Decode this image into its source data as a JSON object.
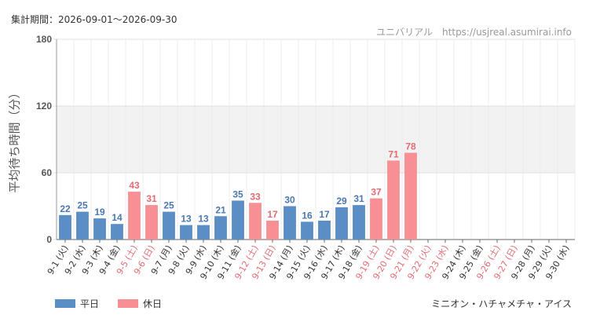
{
  "header": {
    "period": "集計期間：2026-09-01〜2026-09-30",
    "credit": "ユニバリアル　https://usjreal.asumirai.info"
  },
  "footer": {
    "ride_name": "ミニオン・ハチャメチャ・アイス"
  },
  "colors": {
    "weekday": "#5b8ec4",
    "holiday": "#f78f95",
    "weekday_label": "#4a78b0",
    "holiday_label": "#e36b73",
    "band": "#f2f2f2",
    "grid": "#e0e0e0"
  },
  "chart_data": {
    "type": "bar",
    "ylabel": "平均待ち時間（分）",
    "ylim": [
      0,
      180
    ],
    "yticks": [
      0,
      60,
      120,
      180
    ],
    "band_range": [
      60,
      120
    ],
    "grid": true,
    "legend_position": "bottom-left",
    "legend": [
      {
        "name": "平日",
        "key": "weekday"
      },
      {
        "name": "休日",
        "key": "holiday"
      }
    ],
    "categories": [
      "9-1 (火)",
      "9-2 (水)",
      "9-3 (木)",
      "9-4 (金)",
      "9-5 (土)",
      "9-6 (日)",
      "9-7 (月)",
      "9-8 (火)",
      "9-9 (水)",
      "9-10 (木)",
      "9-11 (金)",
      "9-12 (土)",
      "9-13 (日)",
      "9-14 (月)",
      "9-15 (火)",
      "9-16 (水)",
      "9-17 (木)",
      "9-18 (金)",
      "9-19 (土)",
      "9-20 (日)",
      "9-21 (月)",
      "9-22 (火)",
      "9-23 (水)",
      "9-24 (木)",
      "9-25 (金)",
      "9-26 (土)",
      "9-27 (日)",
      "9-28 (月)",
      "9-29 (火)",
      "9-30 (水)"
    ],
    "values": [
      22,
      25,
      19,
      14,
      43,
      31,
      25,
      13,
      13,
      21,
      35,
      33,
      17,
      30,
      16,
      17,
      29,
      31,
      37,
      71,
      78,
      null,
      null,
      null,
      null,
      null,
      null,
      null,
      null,
      null
    ],
    "day_type": [
      "weekday",
      "weekday",
      "weekday",
      "weekday",
      "holiday",
      "holiday",
      "weekday",
      "weekday",
      "weekday",
      "weekday",
      "weekday",
      "holiday",
      "holiday",
      "weekday",
      "weekday",
      "weekday",
      "weekday",
      "weekday",
      "holiday",
      "holiday",
      "holiday",
      "holiday",
      "holiday",
      "weekday",
      "weekday",
      "holiday",
      "holiday",
      "weekday",
      "weekday",
      "weekday"
    ]
  }
}
